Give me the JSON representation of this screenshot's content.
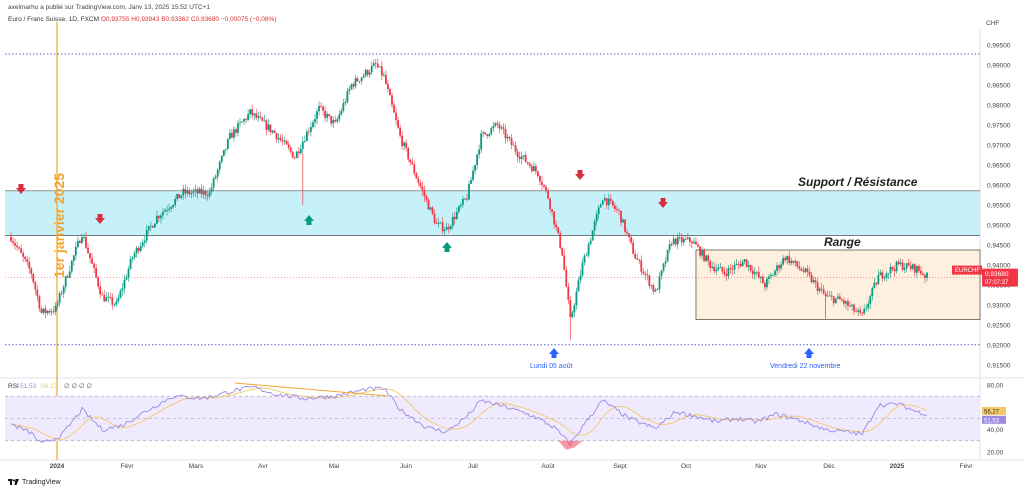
{
  "header": {
    "published": "axelmarhu a publié sur TradingView.com, Janv 13, 2025 15:52 UTC+1",
    "symbol": "Euro / Franc Suisse, 1D, FXCM",
    "ohlc": "O0,93755 H0,93943 B0,93362 C0,93680 −0,00075 (−0,08%)"
  },
  "currency": "CHF",
  "footer": {
    "brand": "TradingView"
  },
  "colors": {
    "up": "#089981",
    "down": "#f23645",
    "zone": "#bdeef8",
    "range": "#fdf0df",
    "rsi": "#9b8ae0",
    "rsi_ma": "#f4c969",
    "label_bg": "#f23645",
    "annotation": "#f3a42e",
    "arrow_blue": "#2962ff"
  },
  "chart_data": {
    "type": "candlestick",
    "symbol": "EURCHF",
    "y_range": [
      0.9137,
      0.9987
    ],
    "y_ticks": [
      "0,99500",
      "0,99000",
      "0,98500",
      "0,98000",
      "0,97500",
      "0,97000",
      "0,96500",
      "0,96000",
      "0,95500",
      "0,95000",
      "0,94500",
      "0,94000",
      "0,93500",
      "0,93000",
      "0,92500",
      "0,92000",
      "0,91500"
    ],
    "x_labels": [
      "2024",
      "Févr",
      "Mars",
      "Avr",
      "Mai",
      "Juin",
      "Juil",
      "Août",
      "Sept",
      "Oct",
      "Nov",
      "Déc",
      "2025",
      "Févr"
    ],
    "anchors": [
      [
        0,
        0.947
      ],
      [
        10,
        0.938
      ],
      [
        15,
        0.928
      ],
      [
        22,
        0.929
      ],
      [
        35,
        0.948
      ],
      [
        45,
        0.932
      ],
      [
        52,
        0.93
      ],
      [
        60,
        0.942
      ],
      [
        72,
        0.952
      ],
      [
        85,
        0.958
      ],
      [
        98,
        0.958
      ],
      [
        108,
        0.972
      ],
      [
        118,
        0.978
      ],
      [
        130,
        0.973
      ],
      [
        140,
        0.967
      ],
      [
        152,
        0.979
      ],
      [
        160,
        0.975
      ],
      [
        168,
        0.985
      ],
      [
        180,
        0.99
      ],
      [
        184,
        0.987
      ],
      [
        192,
        0.972
      ],
      [
        200,
        0.962
      ],
      [
        210,
        0.95
      ],
      [
        215,
        0.949
      ],
      [
        225,
        0.957
      ],
      [
        232,
        0.972
      ],
      [
        240,
        0.975
      ],
      [
        250,
        0.968
      ],
      [
        260,
        0.963
      ],
      [
        265,
        0.957
      ],
      [
        272,
        0.943
      ],
      [
        276,
        0.926
      ],
      [
        282,
        0.94
      ],
      [
        292,
        0.957
      ],
      [
        300,
        0.953
      ],
      [
        308,
        0.942
      ],
      [
        318,
        0.933
      ],
      [
        326,
        0.946
      ],
      [
        336,
        0.946
      ],
      [
        345,
        0.94
      ],
      [
        352,
        0.938
      ],
      [
        362,
        0.941
      ],
      [
        372,
        0.935
      ],
      [
        382,
        0.942
      ],
      [
        392,
        0.938
      ],
      [
        402,
        0.932
      ],
      [
        410,
        0.931
      ],
      [
        420,
        0.927
      ],
      [
        428,
        0.937
      ],
      [
        438,
        0.94
      ],
      [
        447,
        0.939
      ],
      [
        452,
        0.937
      ]
    ],
    "last_price": "0,93680",
    "last_label": "EURCHF",
    "countdown": "07:07:37",
    "levels": {
      "dotted_top": 0.9927,
      "zone_top": 0.9585,
      "zone_bottom": 0.9473,
      "dotted_bottom": 0.92,
      "range_top": 0.9437,
      "range_bottom": 0.9263
    },
    "rsi": {
      "label": "RSI",
      "value": "51,53",
      "ma_value": "56,27",
      "ma_inline": "56,27",
      "extra": "∅ ∅ ∅ ∅",
      "y_range": [
        20,
        80
      ],
      "ticks": [
        "80,00",
        "40,00",
        "20,00"
      ],
      "anchors": [
        [
          0,
          45
        ],
        [
          10,
          37
        ],
        [
          15,
          27
        ],
        [
          25,
          35
        ],
        [
          35,
          58
        ],
        [
          45,
          40
        ],
        [
          55,
          44
        ],
        [
          65,
          55
        ],
        [
          80,
          70
        ],
        [
          95,
          68
        ],
        [
          110,
          75
        ],
        [
          120,
          78
        ],
        [
          130,
          72
        ],
        [
          145,
          68
        ],
        [
          160,
          70
        ],
        [
          175,
          76
        ],
        [
          184,
          77
        ],
        [
          192,
          58
        ],
        [
          205,
          42
        ],
        [
          215,
          38
        ],
        [
          225,
          52
        ],
        [
          232,
          66
        ],
        [
          245,
          60
        ],
        [
          258,
          52
        ],
        [
          268,
          42
        ],
        [
          276,
          27
        ],
        [
          284,
          48
        ],
        [
          292,
          66
        ],
        [
          305,
          50
        ],
        [
          318,
          41
        ],
        [
          328,
          56
        ],
        [
          338,
          52
        ],
        [
          348,
          47
        ],
        [
          358,
          50
        ],
        [
          368,
          47
        ],
        [
          378,
          54
        ],
        [
          390,
          48
        ],
        [
          402,
          40
        ],
        [
          412,
          38
        ],
        [
          420,
          36
        ],
        [
          428,
          62
        ],
        [
          438,
          63
        ],
        [
          447,
          56
        ],
        [
          452,
          54
        ]
      ]
    },
    "annotations": {
      "vertical_label": "1er janvier 2025",
      "support_resistance": "Support / Résistance",
      "range": "Range",
      "lundi": "Lundi 05 août",
      "vendredi": "Vendredi 22 novembre"
    }
  }
}
